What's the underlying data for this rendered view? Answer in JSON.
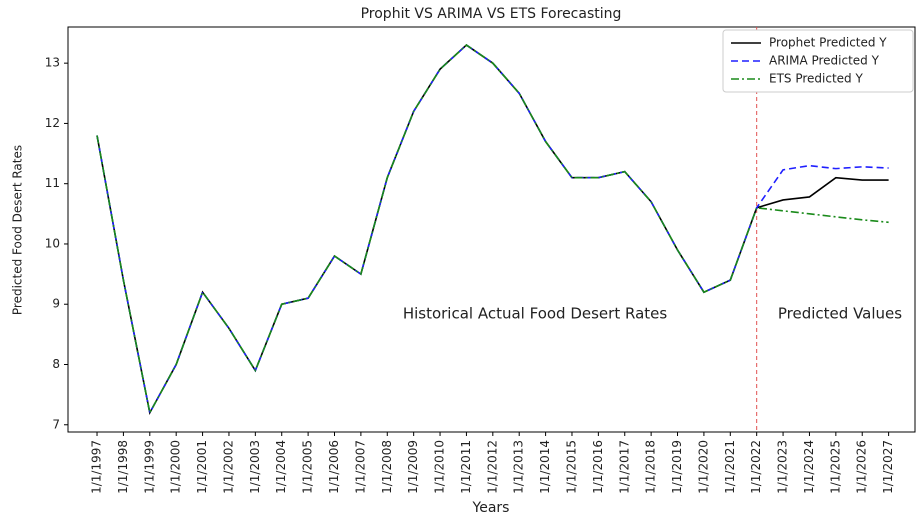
{
  "chart_data": {
    "type": "line",
    "title": "Prophit VS ARIMA VS ETS Forecasting",
    "xlabel": "Years",
    "ylabel": "Predicted Food Desert Rates",
    "categories": [
      "1/1/1997",
      "1/1/1998",
      "1/1/1999",
      "1/1/2000",
      "1/1/2001",
      "1/1/2002",
      "1/1/2003",
      "1/1/2004",
      "1/1/2005",
      "1/1/2006",
      "1/1/2007",
      "1/1/2008",
      "1/1/2009",
      "1/1/2010",
      "1/1/2011",
      "1/1/2012",
      "1/1/2013",
      "1/1/2014",
      "1/1/2015",
      "1/1/2016",
      "1/1/2017",
      "1/1/2018",
      "1/1/2019",
      "1/1/2020",
      "1/1/2021",
      "1/1/2022",
      "1/1/2023",
      "1/1/2024",
      "1/1/2025",
      "1/1/2026",
      "1/1/2027"
    ],
    "series": [
      {
        "name": "Prophet Predicted Y",
        "color": "#000000",
        "dash": "solid",
        "values": [
          11.8,
          9.4,
          7.2,
          8.0,
          9.2,
          8.6,
          7.9,
          9.0,
          9.1,
          9.8,
          9.5,
          11.1,
          12.2,
          12.9,
          13.3,
          13.0,
          12.5,
          11.7,
          11.1,
          11.1,
          11.2,
          10.7,
          9.9,
          9.2,
          9.4,
          10.6,
          10.73,
          10.78,
          11.1,
          11.06,
          11.06
        ]
      },
      {
        "name": "ARIMA Predicted Y",
        "color": "#1f1fff",
        "dash": "dashed",
        "values": [
          11.8,
          9.4,
          7.2,
          8.0,
          9.2,
          8.6,
          7.9,
          9.0,
          9.1,
          9.8,
          9.5,
          11.1,
          12.2,
          12.9,
          13.3,
          13.0,
          12.5,
          11.7,
          11.1,
          11.1,
          11.2,
          10.7,
          9.9,
          9.2,
          9.4,
          10.6,
          11.23,
          11.3,
          11.25,
          11.28,
          11.26
        ]
      },
      {
        "name": "ETS Predicted Y",
        "color": "#1a8a1a",
        "dash": "dashdot",
        "values": [
          11.8,
          9.4,
          7.2,
          8.0,
          9.2,
          8.6,
          7.9,
          9.0,
          9.1,
          9.8,
          9.5,
          11.1,
          12.2,
          12.9,
          13.3,
          13.0,
          12.5,
          11.7,
          11.1,
          11.1,
          11.2,
          10.7,
          9.9,
          9.2,
          9.4,
          10.6,
          10.55,
          10.5,
          10.45,
          10.4,
          10.36
        ]
      }
    ],
    "ylim": [
      6.88,
      13.6
    ],
    "yticks": [
      7,
      8,
      9,
      10,
      11,
      12,
      13
    ],
    "vline": "1/1/2022",
    "vline_color": "#e05050",
    "annotations": [
      "Historical Actual Food Desert Rates",
      "Predicted Values"
    ],
    "legend": "upper right"
  }
}
